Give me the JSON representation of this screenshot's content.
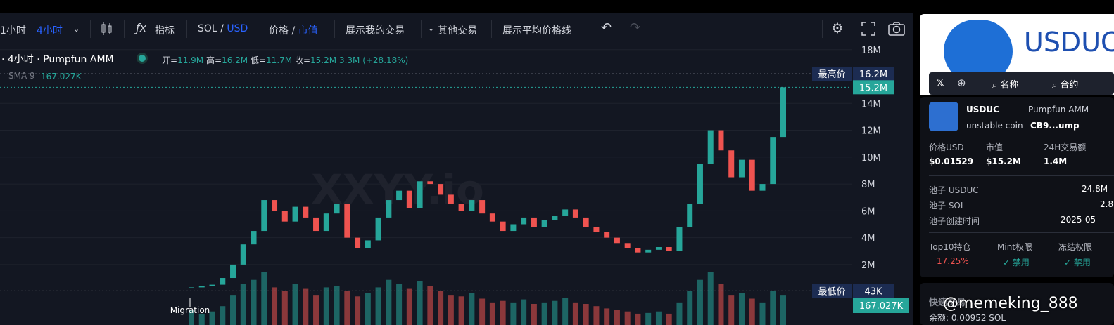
{
  "toolbar": {
    "intervals": [
      "1小时",
      "4小时"
    ],
    "indicators": "指标",
    "pair": {
      "base": "SOL",
      "quote": "USD"
    },
    "mode": {
      "price": "价格",
      "mcap": "市值"
    },
    "show_trades": "展示我的交易",
    "other_trades": "其他交易",
    "avg_line": "展示平均价格线"
  },
  "legend": {
    "interval": "· 4小时 · Pumpfun AMM",
    "ohlc": [
      {
        "key": "开",
        "value": "11.9M"
      },
      {
        "key": "高",
        "value": "16.2M"
      },
      {
        "key": "低",
        "value": "11.7M"
      },
      {
        "key": "收",
        "value": "15.2M"
      }
    ],
    "change": "3.3M (+28.18%)",
    "sma_label": "SMA 9",
    "sma_value": "167.027K"
  },
  "chart_data": {
    "type": "candlestick",
    "title": "USDUC",
    "watermark": "XXYY.io",
    "annotation": "Migration",
    "closes": [
      300000,
      400000,
      500000,
      1000000,
      2000000,
      3500000,
      4500000,
      6800000,
      6000000,
      5200000,
      6300000,
      5500000,
      4500000,
      5800000,
      6500000,
      4000000,
      3200000,
      3800000,
      5500000,
      6800000,
      7500000,
      6200000,
      8200000,
      8000000,
      7200000,
      6500000,
      6000000,
      6800000,
      5800000,
      5200000,
      4500000,
      5000000,
      5500000,
      4800000,
      5300000,
      5600000,
      6100000,
      5500000,
      4800000,
      4400000,
      4000000,
      3600000,
      3200000,
      2900000,
      3100000,
      3300000,
      3000000,
      4800000,
      6500000,
      9500000,
      12000000,
      10500000,
      8500000,
      9800000,
      7500000,
      8000000,
      11500000,
      15200000
    ],
    "volumes": [
      20,
      15,
      18,
      25,
      40,
      55,
      60,
      70,
      50,
      45,
      55,
      48,
      40,
      50,
      52,
      45,
      38,
      42,
      50,
      60,
      55,
      48,
      58,
      52,
      45,
      40,
      38,
      42,
      35,
      30,
      32,
      30,
      34,
      28,
      30,
      32,
      36,
      30,
      28,
      25,
      22,
      20,
      18,
      15,
      16,
      18,
      15,
      30,
      45,
      60,
      70,
      55,
      40,
      42,
      35,
      30,
      45,
      40
    ],
    "ylim": [
      -2500000,
      18300000
    ],
    "yticks": [
      {
        "value": 2000000,
        "label": "2M"
      },
      {
        "value": 4000000,
        "label": "4M"
      },
      {
        "value": 6000000,
        "label": "6M"
      },
      {
        "value": 8000000,
        "label": "8M"
      },
      {
        "value": 10000000,
        "label": "10M"
      },
      {
        "value": 12000000,
        "label": "12M"
      },
      {
        "value": 14000000,
        "label": "14M"
      },
      {
        "value": 18000000,
        "label": "18M"
      }
    ],
    "high": {
      "label": "最高价",
      "value": 16200000,
      "value_label": "16.2M"
    },
    "current": {
      "value": 15200000,
      "value_label": "15.2M"
    },
    "low": {
      "label": "最低价",
      "value": 43000,
      "value_label": "43K"
    },
    "colors": {
      "up": "#26a69a",
      "down": "#ef5350"
    }
  },
  "token": {
    "image_title": "USDUC",
    "links": [
      "名称",
      "合约"
    ],
    "name": "USDUC",
    "platform": "Pumpfun AMM",
    "desc": "unstable coin",
    "address": "CB9...ump",
    "stats": [
      {
        "label": "价格USD",
        "value": "$0.01529"
      },
      {
        "label": "市值",
        "value": "$15.2M"
      },
      {
        "label": "24H交易额",
        "value": "1.4M"
      }
    ],
    "pool": [
      {
        "label": "池子 USDUC",
        "value": "24.8M"
      },
      {
        "label": "池子 SOL",
        "value": "2.8"
      },
      {
        "label": "池子创建时间",
        "value": "2025-05-"
      }
    ],
    "security": [
      {
        "label": "Top10持仓",
        "value": "17.25%"
      },
      {
        "label": "Mint权限",
        "value": "禁用"
      },
      {
        "label": "冻结权限",
        "value": "禁用"
      }
    ],
    "trade": {
      "title": "快速交易",
      "balance": "余额: 0.00952 SOL"
    }
  },
  "watermark": "@memeking_888"
}
